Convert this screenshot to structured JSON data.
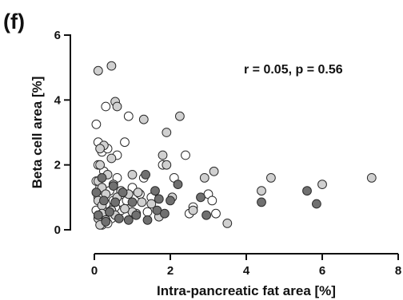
{
  "panel_label": "(f)",
  "colors": {
    "open_fill": "#ffffff",
    "light_fill": "#d0d0d0",
    "dark_fill": "#707070",
    "stroke": "#2a2a2a"
  },
  "chart_data": {
    "type": "scatter",
    "title": "",
    "xlabel": "Intra-pancreatic fat area [%]",
    "ylabel": "Beta cell area [%]",
    "xlim": [
      0,
      8
    ],
    "ylim": [
      0,
      6
    ],
    "x_ticks": [
      "0",
      "2",
      "4",
      "6",
      "8"
    ],
    "y_ticks": [
      "0",
      "2",
      "4",
      "6"
    ],
    "annotation": "r = 0.05, p = 0.56",
    "grid": false,
    "legend": "none",
    "series": [
      {
        "fill": "open",
        "points": [
          [
            0.05,
            3.25
          ],
          [
            0.3,
            3.8
          ],
          [
            0.1,
            2.7
          ],
          [
            0.2,
            2.4
          ],
          [
            0.35,
            2.5
          ],
          [
            0.1,
            2.0
          ],
          [
            0.25,
            1.8
          ],
          [
            0.05,
            1.5
          ],
          [
            0.4,
            1.2
          ],
          [
            0.1,
            1.0
          ],
          [
            0.3,
            0.8
          ],
          [
            0.05,
            0.6
          ],
          [
            0.25,
            0.4
          ],
          [
            0.5,
            0.9
          ],
          [
            0.6,
            1.6
          ],
          [
            0.8,
            2.7
          ],
          [
            0.9,
            3.5
          ],
          [
            0.2,
            0.15
          ],
          [
            0.45,
            0.35
          ],
          [
            0.7,
            0.6
          ],
          [
            1.0,
            1.3
          ],
          [
            1.1,
            0.5
          ],
          [
            1.3,
            1.6
          ],
          [
            1.5,
            1.0
          ],
          [
            0.15,
            1.3
          ],
          [
            0.35,
            0.2
          ],
          [
            0.6,
            2.3
          ],
          [
            0.75,
            1.1
          ],
          [
            1.8,
            2.0
          ],
          [
            2.1,
            1.6
          ],
          [
            2.4,
            2.3
          ],
          [
            2.5,
            0.5
          ],
          [
            2.6,
            0.7
          ],
          [
            3.0,
            1.1
          ],
          [
            3.1,
            0.9
          ],
          [
            3.2,
            0.5
          ],
          [
            0.55,
            0.7
          ],
          [
            0.85,
            0.9
          ],
          [
            1.2,
            1.1
          ],
          [
            1.4,
            0.55
          ]
        ]
      },
      {
        "fill": "light",
        "points": [
          [
            0.1,
            4.9
          ],
          [
            0.45,
            5.05
          ],
          [
            0.55,
            3.95
          ],
          [
            0.6,
            3.8
          ],
          [
            1.3,
            3.4
          ],
          [
            2.25,
            3.5
          ],
          [
            1.9,
            3.0
          ],
          [
            0.25,
            2.6
          ],
          [
            0.15,
            2.5
          ],
          [
            1.8,
            2.3
          ],
          [
            0.45,
            2.2
          ],
          [
            1.9,
            2.0
          ],
          [
            0.15,
            2.0
          ],
          [
            3.15,
            1.8
          ],
          [
            0.35,
            1.7
          ],
          [
            1.0,
            1.7
          ],
          [
            2.9,
            1.6
          ],
          [
            4.65,
            1.6
          ],
          [
            7.3,
            1.6
          ],
          [
            0.1,
            1.5
          ],
          [
            0.5,
            1.4
          ],
          [
            6.0,
            1.4
          ],
          [
            0.2,
            1.3
          ],
          [
            4.4,
            1.2
          ],
          [
            0.7,
            1.2
          ],
          [
            1.15,
            1.15
          ],
          [
            0.3,
            1.1
          ],
          [
            0.9,
            1.1
          ],
          [
            0.1,
            0.9
          ],
          [
            0.6,
            1.0
          ],
          [
            1.5,
            0.8
          ],
          [
            0.2,
            0.75
          ],
          [
            0.45,
            0.6
          ],
          [
            1.0,
            0.55
          ],
          [
            0.2,
            0.5
          ],
          [
            0.55,
            0.45
          ],
          [
            1.7,
            0.4
          ],
          [
            0.1,
            0.35
          ],
          [
            0.3,
            0.3
          ],
          [
            2.6,
            0.6
          ],
          [
            3.5,
            0.2
          ],
          [
            0.15,
            0.15
          ],
          [
            0.8,
            0.65
          ],
          [
            1.25,
            0.85
          ],
          [
            2.05,
            1.0
          ]
        ]
      },
      {
        "fill": "dark",
        "points": [
          [
            0.2,
            1.6
          ],
          [
            0.5,
            1.35
          ],
          [
            0.75,
            1.15
          ],
          [
            1.0,
            0.85
          ],
          [
            1.35,
            1.7
          ],
          [
            1.6,
            1.2
          ],
          [
            1.7,
            0.95
          ],
          [
            2.0,
            0.9
          ],
          [
            2.2,
            1.4
          ],
          [
            2.8,
            1.0
          ],
          [
            2.95,
            0.45
          ],
          [
            4.4,
            0.85
          ],
          [
            5.6,
            1.2
          ],
          [
            5.85,
            0.8
          ],
          [
            0.25,
            0.9
          ],
          [
            0.4,
            0.55
          ],
          [
            0.65,
            0.35
          ],
          [
            0.9,
            0.3
          ],
          [
            1.1,
            0.45
          ],
          [
            1.4,
            0.3
          ],
          [
            1.65,
            0.6
          ],
          [
            1.85,
            0.5
          ],
          [
            0.1,
            0.45
          ],
          [
            0.3,
            0.25
          ],
          [
            0.05,
            1.15
          ],
          [
            0.55,
            0.85
          ]
        ]
      }
    ]
  }
}
